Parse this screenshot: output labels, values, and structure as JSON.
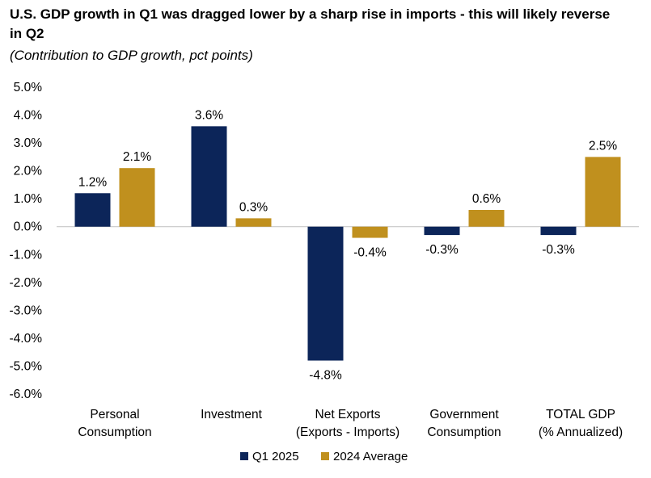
{
  "title": "U.S. GDP growth in Q1 was dragged lower by a sharp rise in imports - this will likely reverse in Q2",
  "subtitle": "(Contribution to GDP growth, pct points)",
  "colors": {
    "q1": "#0c2559",
    "avg": "#c0901e"
  },
  "chart_data": {
    "type": "bar",
    "title": "U.S. GDP growth in Q1 was dragged lower by a sharp rise in imports - this will likely reverse in Q2",
    "subtitle": "(Contribution to GDP growth, pct points)",
    "categories": [
      [
        "Personal",
        "Consumption"
      ],
      [
        "Investment"
      ],
      [
        "Net Exports",
        "(Exports - Imports)"
      ],
      [
        "Government",
        "Consumption"
      ],
      [
        "TOTAL GDP",
        "(% Annualized)"
      ]
    ],
    "series": [
      {
        "name": "Q1 2025",
        "values": [
          1.2,
          3.6,
          -4.8,
          -0.3,
          -0.3
        ],
        "labels": [
          "1.2%",
          "3.6%",
          "-4.8%",
          "-0.3%",
          "-0.3%"
        ]
      },
      {
        "name": "2024 Average",
        "values": [
          2.1,
          0.3,
          -0.4,
          0.6,
          2.5
        ],
        "labels": [
          "2.1%",
          "0.3%",
          "-0.4%",
          "0.6%",
          "2.5%"
        ]
      }
    ],
    "yticks": [
      5,
      4,
      3,
      2,
      1,
      0,
      -1,
      -2,
      -3,
      -4,
      -5,
      -6
    ],
    "ytick_labels": [
      "5.0%",
      "4.0%",
      "3.0%",
      "2.0%",
      "1.0%",
      "0.0%",
      "-1.0%",
      "-2.0%",
      "-3.0%",
      "-4.0%",
      "-5.0%",
      "-6.0%"
    ],
    "ylim": [
      -6,
      5
    ],
    "xlabel": "",
    "ylabel": "",
    "grid": false,
    "legend": "bottom"
  }
}
